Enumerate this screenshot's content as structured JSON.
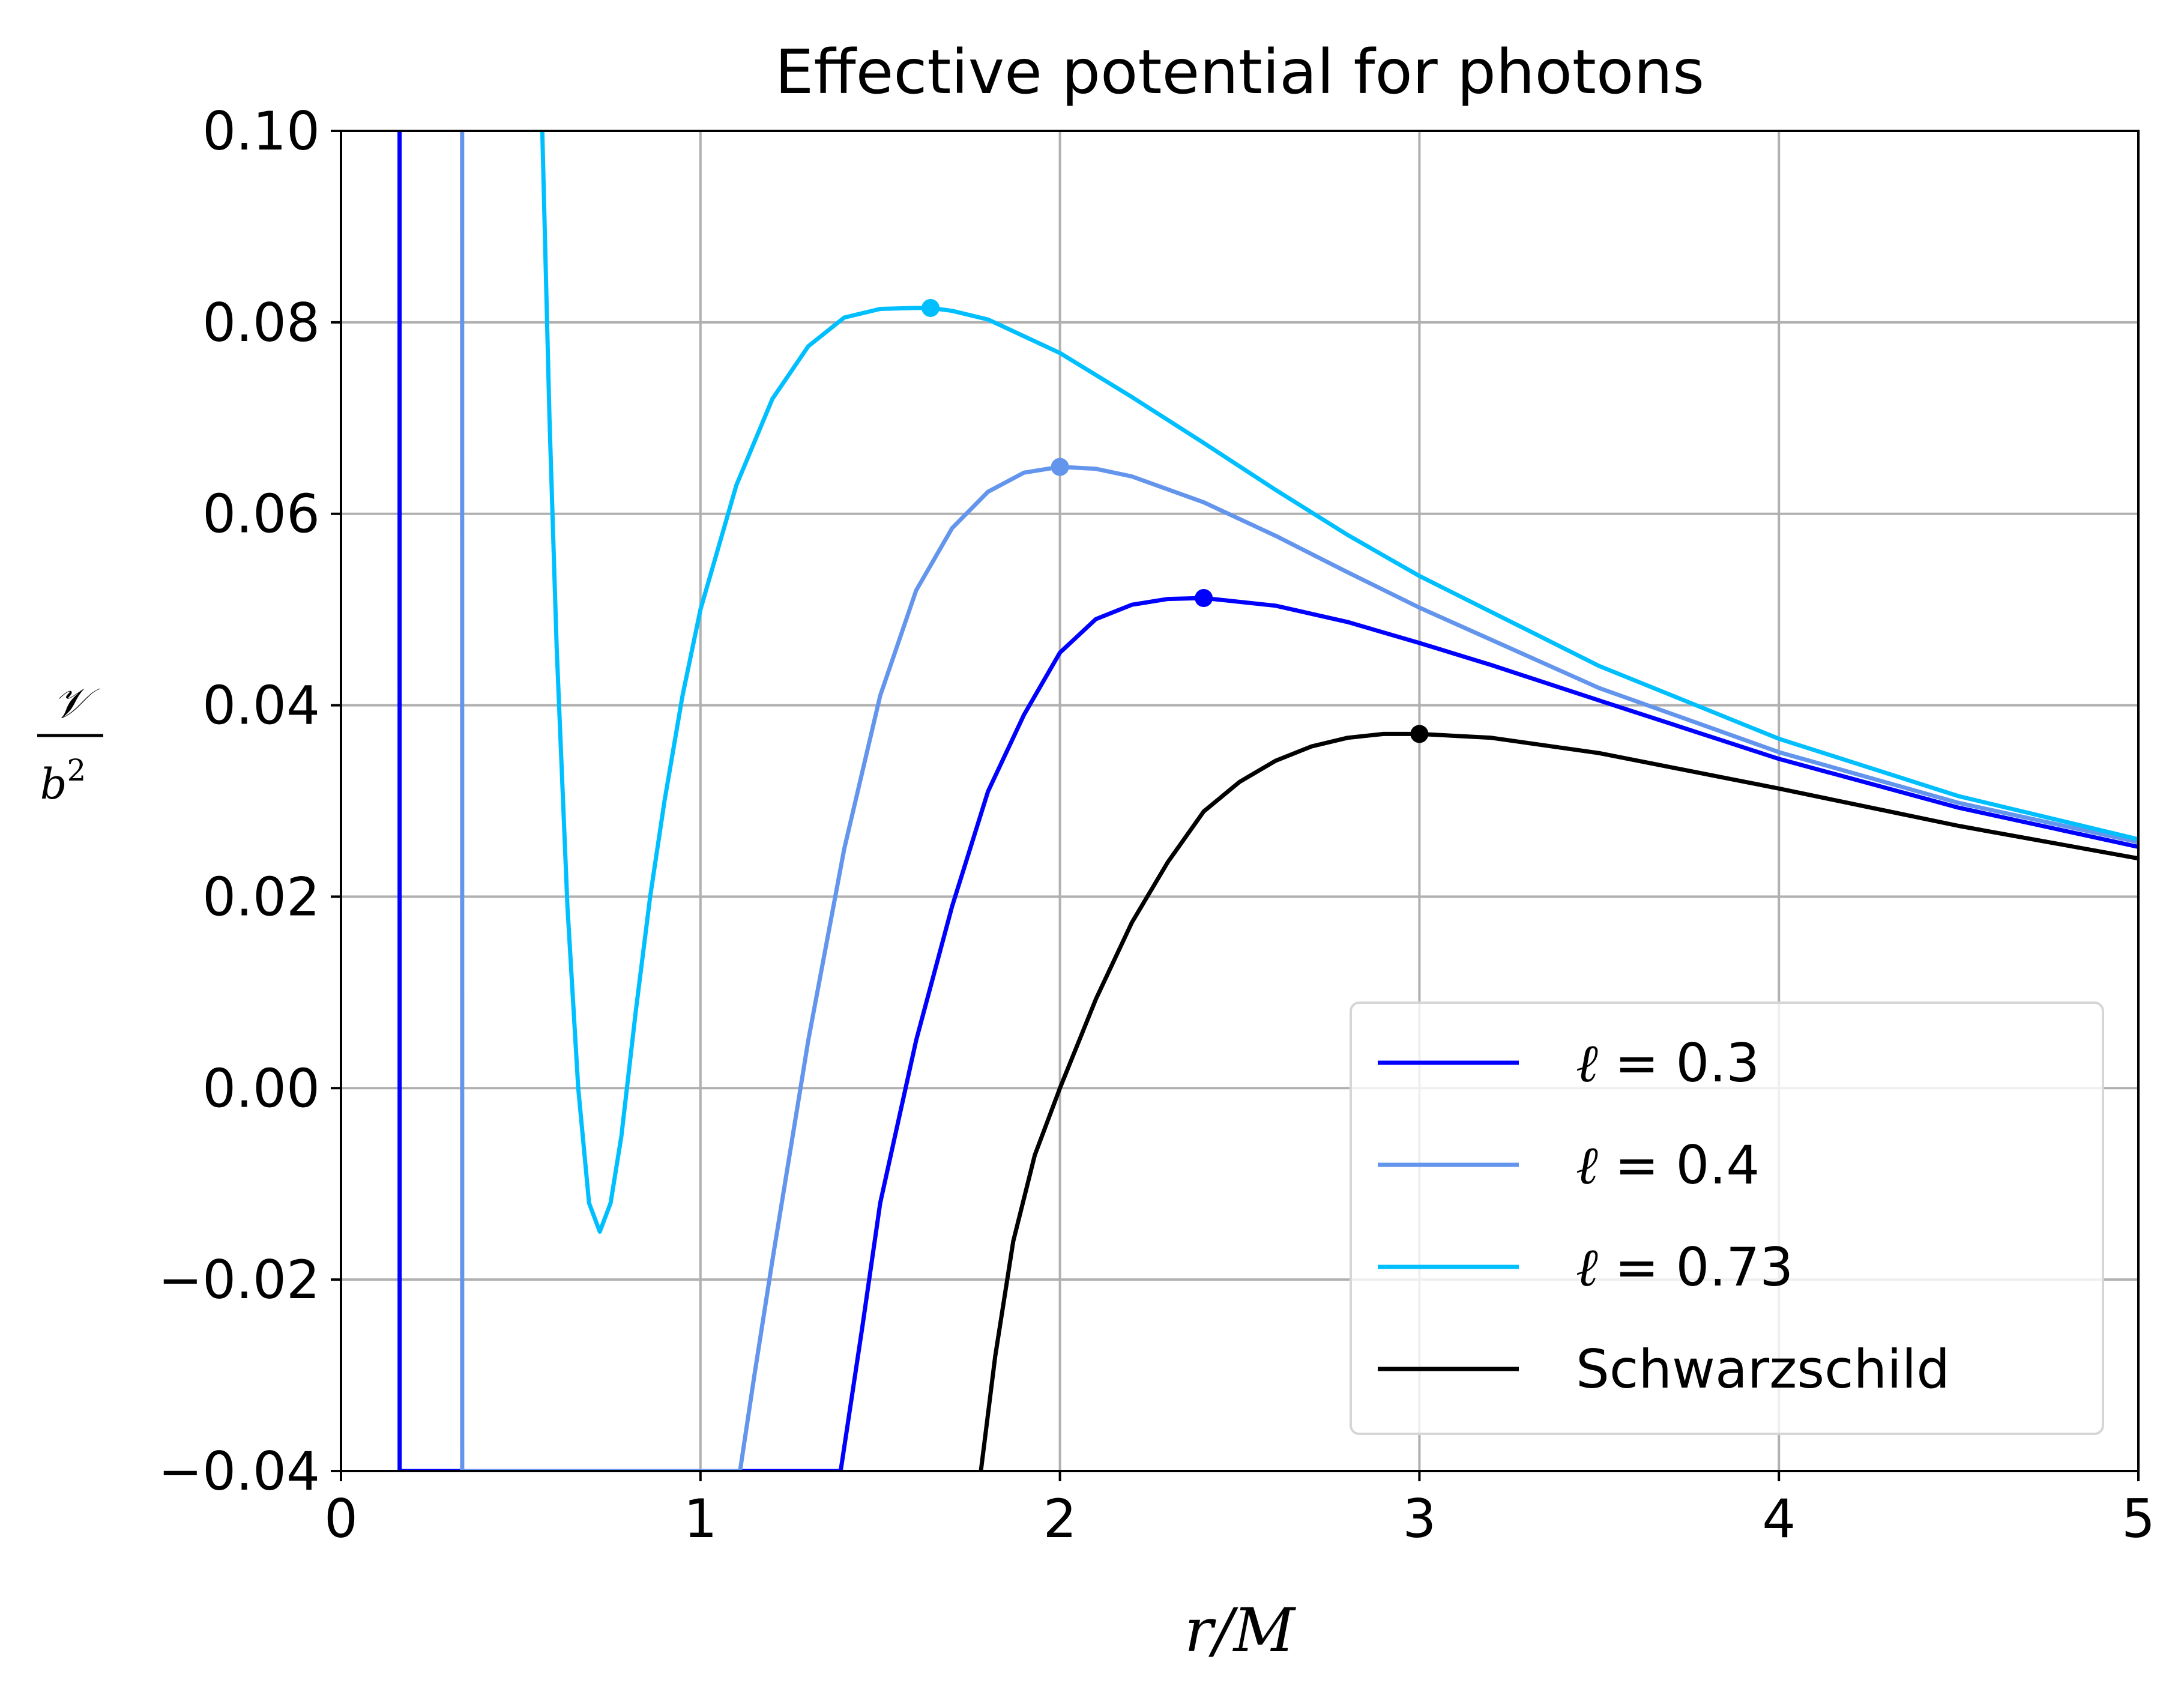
{
  "chart_data": {
    "type": "line",
    "title": "Effective potential for photons",
    "xlabel": "r/M",
    "ylabel_numerator": "𝒱",
    "ylabel_denominator": "b",
    "ylabel_exponent": "2",
    "xlim": [
      0,
      5
    ],
    "ylim": [
      -0.04,
      0.1
    ],
    "xticks": [
      0,
      1,
      2,
      3,
      4,
      5
    ],
    "xtick_labels": [
      "0",
      "1",
      "2",
      "3",
      "4",
      "5"
    ],
    "yticks": [
      -0.04,
      -0.02,
      0.0,
      0.02,
      0.04,
      0.06,
      0.08,
      0.1
    ],
    "ytick_labels": [
      "−0.04",
      "−0.02",
      "0.00",
      "0.02",
      "0.04",
      "0.06",
      "0.08",
      "0.10"
    ],
    "grid": true,
    "legend_position": "lower-right",
    "series": [
      {
        "name": "ℓ = 0.3",
        "ell_symbol": "ℓ",
        "ell_value": "0.3",
        "color": "#0000ff",
        "x": [
          0.163,
          0.1631,
          0.17,
          0.2,
          1.39,
          1.45,
          1.5,
          1.6,
          1.7,
          1.8,
          1.9,
          2.0,
          2.1,
          2.2,
          2.3,
          2.4,
          2.6,
          2.8,
          3.0,
          3.2,
          3.5,
          4.0,
          4.5,
          5.0
        ],
        "y": [
          0.1,
          -0.04,
          -0.04,
          -0.04,
          -0.04,
          -0.025,
          -0.012,
          0.005,
          0.019,
          0.031,
          0.039,
          0.0455,
          0.049,
          0.0505,
          0.0511,
          0.0512,
          0.0504,
          0.0487,
          0.0465,
          0.0442,
          0.0405,
          0.0344,
          0.0293,
          0.0252
        ],
        "peak": {
          "x": 2.4,
          "y": 0.0512
        }
      },
      {
        "name": "ℓ = 0.4",
        "ell_symbol": "ℓ",
        "ell_value": "0.4",
        "color": "#6495ed",
        "x": [
          0.337,
          0.3371,
          0.34,
          1.11,
          1.15,
          1.2,
          1.3,
          1.4,
          1.5,
          1.6,
          1.7,
          1.8,
          1.9,
          2.0,
          2.1,
          2.2,
          2.4,
          2.6,
          2.8,
          3.0,
          3.5,
          4.0,
          4.5,
          5.0
        ],
        "y": [
          0.1,
          -0.04,
          -0.04,
          -0.04,
          -0.03,
          -0.018,
          0.005,
          0.025,
          0.041,
          0.052,
          0.0585,
          0.0623,
          0.0643,
          0.0649,
          0.0647,
          0.0639,
          0.0612,
          0.0577,
          0.0539,
          0.0502,
          0.0418,
          0.0351,
          0.0298,
          0.0257
        ],
        "peak": {
          "x": 2.0,
          "y": 0.0649
        }
      },
      {
        "name": "ℓ = 0.73",
        "ell_symbol": "ℓ",
        "ell_value": "0.73",
        "color": "#00bfff",
        "x": [
          0.56,
          0.58,
          0.6,
          0.63,
          0.66,
          0.69,
          0.72,
          0.75,
          0.78,
          0.82,
          0.86,
          0.9,
          0.95,
          1.0,
          1.1,
          1.2,
          1.3,
          1.4,
          1.5,
          1.6,
          1.64,
          1.7,
          1.8,
          2.0,
          2.2,
          2.4,
          2.6,
          2.8,
          3.0,
          3.5,
          4.0,
          4.5,
          5.0
        ],
        "y": [
          0.1,
          0.07,
          0.046,
          0.019,
          0.0,
          -0.012,
          -0.015,
          -0.012,
          -0.005,
          0.008,
          0.02,
          0.03,
          0.041,
          0.05,
          0.063,
          0.072,
          0.0775,
          0.0805,
          0.0814,
          0.0815,
          0.0815,
          0.0812,
          0.0803,
          0.0768,
          0.0722,
          0.0674,
          0.0625,
          0.0578,
          0.0535,
          0.0441,
          0.0365,
          0.0305,
          0.026
        ],
        "peak": {
          "x": 1.64,
          "y": 0.0815
        }
      },
      {
        "name": "Schwarzschild",
        "color": "#000000",
        "x": [
          1.78,
          1.82,
          1.87,
          1.93,
          2.0,
          2.1,
          2.2,
          2.3,
          2.4,
          2.5,
          2.6,
          2.7,
          2.8,
          2.9,
          3.0,
          3.2,
          3.5,
          4.0,
          4.5,
          5.0
        ],
        "y": [
          -0.04,
          -0.028,
          -0.016,
          -0.007,
          0.0,
          0.0093,
          0.0173,
          0.0236,
          0.0289,
          0.032,
          0.0342,
          0.0357,
          0.0366,
          0.037,
          0.037,
          0.0366,
          0.035,
          0.0313,
          0.0274,
          0.024
        ],
        "peak": {
          "x": 3.0,
          "y": 0.037
        }
      }
    ]
  }
}
